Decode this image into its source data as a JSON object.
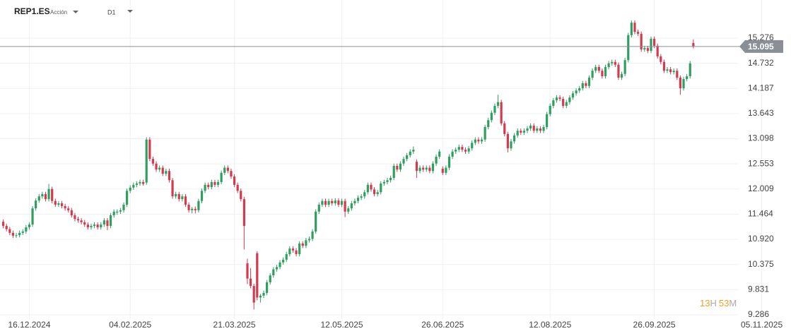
{
  "chart_data": {
    "type": "candlestick",
    "symbol": "REP1.ES",
    "instrument": "Acción",
    "timeframe": "D1",
    "up_color": "#2f9e5e",
    "down_color": "#d23a4e",
    "ylim": [
      9.194,
      16.101
    ],
    "yticks": [
      9.286,
      9.831,
      10.375,
      {
        "value": 10.92,
        "label": "10.920"
      },
      11.464,
      12.009,
      12.553,
      13.098,
      13.643,
      14.187,
      14.732,
      15.276
    ],
    "xlim": [
      -1,
      242
    ],
    "xticks": [
      {
        "value": 8,
        "label": "16.12.2024"
      },
      {
        "value": 39,
        "label": "04.02.2025"
      },
      {
        "value": 71,
        "label": "21.03.2025"
      },
      {
        "value": 104,
        "label": "12.05.2025"
      },
      {
        "value": 135,
        "label": "26.06.2025"
      },
      {
        "value": 168,
        "label": "12.08.2025"
      },
      {
        "value": 200,
        "label": "26.09.2025"
      },
      {
        "value": 233,
        "label": "05.11.2025"
      }
    ],
    "grid": true,
    "current_price": 15.095,
    "timer": {
      "hours": "13",
      "h": "H",
      "minutes": "53",
      "m": "M"
    },
    "candles": [
      [
        11.3,
        11.35,
        11.16,
        11.21
      ],
      [
        11.21,
        11.26,
        11.09,
        11.14
      ],
      [
        11.14,
        11.19,
        11.01,
        11.06
      ],
      [
        11.06,
        11.11,
        10.95,
        11.0
      ],
      [
        11.0,
        11.06,
        10.95,
        11.01
      ],
      [
        11.01,
        11.11,
        10.96,
        11.06
      ],
      [
        11.06,
        11.14,
        11.01,
        11.09
      ],
      [
        11.09,
        11.23,
        11.04,
        11.18
      ],
      [
        11.18,
        11.29,
        11.13,
        11.24
      ],
      [
        11.24,
        11.64,
        11.19,
        11.59
      ],
      [
        11.59,
        11.81,
        11.54,
        11.76
      ],
      [
        11.76,
        11.9,
        11.71,
        11.85
      ],
      [
        11.85,
        11.95,
        11.8,
        11.9
      ],
      [
        11.9,
        11.95,
        11.74,
        11.79
      ],
      [
        11.79,
        12.12,
        11.74,
        12.01
      ],
      [
        12.01,
        12.06,
        11.7,
        11.75
      ],
      [
        11.75,
        11.8,
        11.62,
        11.67
      ],
      [
        11.67,
        11.75,
        11.62,
        11.7
      ],
      [
        11.7,
        11.75,
        11.59,
        11.64
      ],
      [
        11.64,
        11.69,
        11.54,
        11.59
      ],
      [
        11.59,
        11.64,
        11.5,
        11.55
      ],
      [
        11.55,
        11.6,
        11.39,
        11.44
      ],
      [
        11.44,
        11.49,
        11.31,
        11.36
      ],
      [
        11.36,
        11.41,
        11.28,
        11.33
      ],
      [
        11.33,
        11.38,
        11.24,
        11.29
      ],
      [
        11.29,
        11.34,
        11.19,
        11.24
      ],
      [
        11.24,
        11.29,
        11.13,
        11.18
      ],
      [
        11.18,
        11.26,
        11.13,
        11.21
      ],
      [
        11.21,
        11.29,
        11.16,
        11.24
      ],
      [
        11.24,
        11.29,
        11.13,
        11.18
      ],
      [
        11.18,
        11.29,
        11.13,
        11.24
      ],
      [
        11.24,
        11.38,
        11.19,
        11.33
      ],
      [
        11.33,
        11.38,
        11.12,
        11.21
      ],
      [
        11.21,
        11.49,
        11.16,
        11.44
      ],
      [
        11.44,
        11.57,
        11.39,
        11.52
      ],
      [
        11.5,
        11.57,
        11.45,
        11.52
      ],
      [
        11.52,
        11.6,
        11.47,
        11.55
      ],
      [
        11.55,
        11.72,
        11.5,
        11.67
      ],
      [
        11.67,
        12.02,
        11.62,
        11.97
      ],
      [
        11.97,
        12.09,
        11.92,
        12.04
      ],
      [
        12.04,
        12.15,
        11.99,
        12.1
      ],
      [
        12.1,
        12.18,
        12.05,
        12.13
      ],
      [
        12.13,
        12.21,
        12.08,
        12.16
      ],
      [
        12.16,
        12.21,
        12.08,
        12.12
      ],
      [
        12.15,
        13.13,
        12.1,
        13.08
      ],
      [
        13.08,
        13.13,
        12.61,
        12.66
      ],
      [
        12.66,
        12.71,
        12.51,
        12.56
      ],
      [
        12.56,
        12.61,
        12.38,
        12.43
      ],
      [
        12.43,
        12.52,
        12.38,
        12.47
      ],
      [
        12.47,
        12.52,
        12.29,
        12.34
      ],
      [
        12.34,
        12.45,
        12.29,
        12.4
      ],
      [
        12.4,
        12.45,
        12.15,
        12.2
      ],
      [
        12.2,
        12.25,
        11.8,
        11.85
      ],
      [
        11.85,
        11.95,
        11.8,
        11.9
      ],
      [
        11.9,
        11.95,
        11.74,
        11.79
      ],
      [
        11.79,
        11.9,
        11.74,
        11.85
      ],
      [
        11.85,
        11.9,
        11.62,
        11.67
      ],
      [
        11.67,
        11.72,
        11.5,
        11.55
      ],
      [
        11.55,
        11.62,
        11.48,
        11.58
      ],
      [
        11.58,
        11.63,
        11.48,
        11.55
      ],
      [
        11.55,
        11.8,
        11.5,
        11.75
      ],
      [
        11.75,
        12.02,
        11.7,
        11.97
      ],
      [
        11.97,
        12.15,
        11.92,
        12.1
      ],
      [
        12.1,
        12.15,
        12.0,
        12.05
      ],
      [
        12.05,
        12.21,
        12.0,
        12.16
      ],
      [
        12.16,
        12.21,
        12.05,
        12.1
      ],
      [
        12.1,
        12.21,
        12.05,
        12.16
      ],
      [
        12.16,
        12.41,
        12.11,
        12.36
      ],
      [
        12.36,
        12.52,
        12.31,
        12.47
      ],
      [
        12.47,
        12.52,
        12.35,
        12.4
      ],
      [
        12.4,
        12.45,
        12.23,
        12.28
      ],
      [
        12.28,
        12.33,
        12.05,
        12.1
      ],
      [
        12.1,
        12.15,
        11.92,
        11.97
      ],
      [
        11.97,
        12.02,
        11.74,
        11.79
      ],
      [
        11.79,
        11.84,
        10.7,
        11.21
      ],
      [
        10.4,
        10.5,
        9.95,
        10.07
      ],
      [
        10.07,
        10.3,
        9.86,
        9.91
      ],
      [
        9.91,
        9.96,
        9.4,
        9.55
      ],
      [
        10.62,
        10.66,
        9.6,
        9.66
      ],
      [
        9.66,
        9.74,
        9.55,
        9.7
      ],
      [
        9.7,
        9.81,
        9.65,
        9.76
      ],
      [
        9.76,
        10.04,
        9.71,
        9.99
      ],
      [
        9.99,
        10.19,
        9.94,
        10.14
      ],
      [
        10.14,
        10.32,
        10.09,
        10.27
      ],
      [
        10.27,
        10.37,
        10.22,
        10.32
      ],
      [
        10.32,
        10.47,
        10.27,
        10.42
      ],
      [
        10.42,
        10.53,
        10.37,
        10.48
      ],
      [
        10.48,
        10.65,
        10.43,
        10.6
      ],
      [
        10.6,
        10.77,
        10.55,
        10.72
      ],
      [
        10.72,
        10.77,
        10.63,
        10.68
      ],
      [
        10.68,
        10.73,
        10.55,
        10.6
      ],
      [
        10.6,
        10.88,
        10.55,
        10.83
      ],
      [
        10.83,
        10.88,
        10.73,
        10.78
      ],
      [
        10.78,
        10.95,
        10.73,
        10.9
      ],
      [
        10.9,
        10.98,
        10.85,
        10.93
      ],
      [
        10.93,
        11.14,
        10.88,
        11.09
      ],
      [
        11.09,
        11.57,
        11.04,
        11.52
      ],
      [
        11.52,
        11.72,
        11.47,
        11.67
      ],
      [
        11.67,
        11.8,
        11.62,
        11.75
      ],
      [
        11.75,
        11.8,
        11.62,
        11.67
      ],
      [
        11.67,
        11.8,
        11.62,
        11.75
      ],
      [
        11.75,
        11.8,
        11.65,
        11.7
      ],
      [
        11.7,
        11.81,
        11.65,
        11.76
      ],
      [
        11.76,
        11.81,
        11.62,
        11.67
      ],
      [
        11.67,
        11.8,
        11.62,
        11.75
      ],
      [
        11.75,
        11.8,
        11.4,
        11.52
      ],
      [
        11.52,
        11.64,
        11.47,
        11.59
      ],
      [
        11.59,
        11.75,
        11.54,
        11.7
      ],
      [
        11.7,
        11.8,
        11.65,
        11.75
      ],
      [
        11.75,
        11.87,
        11.7,
        11.82
      ],
      [
        11.82,
        11.9,
        11.77,
        11.85
      ],
      [
        11.85,
        11.99,
        11.8,
        11.94
      ],
      [
        11.94,
        12.15,
        11.89,
        12.1
      ],
      [
        12.1,
        12.15,
        11.95,
        12.0
      ],
      [
        12.0,
        12.05,
        11.85,
        11.9
      ],
      [
        11.9,
        11.99,
        11.85,
        11.94
      ],
      [
        11.94,
        12.18,
        11.89,
        12.13
      ],
      [
        12.13,
        12.21,
        12.08,
        12.16
      ],
      [
        12.16,
        12.25,
        12.11,
        12.2
      ],
      [
        12.2,
        12.3,
        12.15,
        12.25
      ],
      [
        12.25,
        12.56,
        12.2,
        12.51
      ],
      [
        12.51,
        12.56,
        12.38,
        12.43
      ],
      [
        12.43,
        12.61,
        12.38,
        12.56
      ],
      [
        12.56,
        12.71,
        12.51,
        12.66
      ],
      [
        12.66,
        12.79,
        12.61,
        12.74
      ],
      [
        12.74,
        12.87,
        12.69,
        12.82
      ],
      [
        12.82,
        12.93,
        12.77,
        12.86
      ],
      [
        12.6,
        12.65,
        12.25,
        12.4
      ],
      [
        12.4,
        12.52,
        12.35,
        12.47
      ],
      [
        12.47,
        12.52,
        12.38,
        12.43
      ],
      [
        12.43,
        12.52,
        12.38,
        12.47
      ],
      [
        12.47,
        12.52,
        12.35,
        12.4
      ],
      [
        12.4,
        12.61,
        12.35,
        12.56
      ],
      [
        12.56,
        12.76,
        12.51,
        12.71
      ],
      [
        12.71,
        12.87,
        12.66,
        12.82
      ],
      [
        12.45,
        12.5,
        12.31,
        12.36
      ],
      [
        12.36,
        12.52,
        12.31,
        12.47
      ],
      [
        12.47,
        12.76,
        12.42,
        12.71
      ],
      [
        12.71,
        12.87,
        12.66,
        12.82
      ],
      [
        12.82,
        12.91,
        12.77,
        12.86
      ],
      [
        12.86,
        12.97,
        12.81,
        12.92
      ],
      [
        12.92,
        12.97,
        12.81,
        12.86
      ],
      [
        12.86,
        12.91,
        12.77,
        12.82
      ],
      [
        12.82,
        12.94,
        12.77,
        12.89
      ],
      [
        12.89,
        13.06,
        12.84,
        13.01
      ],
      [
        13.01,
        13.13,
        12.96,
        13.08
      ],
      [
        13.08,
        13.13,
        12.99,
        13.04
      ],
      [
        13.04,
        13.13,
        12.99,
        13.08
      ],
      [
        13.08,
        13.4,
        13.03,
        13.35
      ],
      [
        13.35,
        13.55,
        13.3,
        13.5
      ],
      [
        13.5,
        13.71,
        13.45,
        13.66
      ],
      [
        13.66,
        13.86,
        13.61,
        13.81
      ],
      [
        13.81,
        14.05,
        13.76,
        13.89
      ],
      [
        13.89,
        13.94,
        13.38,
        13.43
      ],
      [
        13.43,
        13.48,
        13.15,
        13.2
      ],
      [
        13.2,
        13.25,
        12.8,
        12.89
      ],
      [
        12.89,
        13.09,
        12.84,
        13.04
      ],
      [
        13.04,
        13.22,
        12.99,
        13.17
      ],
      [
        13.17,
        13.32,
        13.12,
        13.27
      ],
      [
        13.27,
        13.32,
        13.18,
        13.23
      ],
      [
        13.23,
        13.32,
        13.18,
        13.27
      ],
      [
        13.27,
        13.37,
        13.22,
        13.32
      ],
      [
        13.32,
        13.43,
        13.27,
        13.38
      ],
      [
        13.38,
        13.43,
        13.22,
        13.27
      ],
      [
        13.27,
        13.37,
        13.22,
        13.32
      ],
      [
        13.32,
        13.37,
        13.22,
        13.27
      ],
      [
        13.27,
        13.4,
        13.22,
        13.35
      ],
      [
        13.35,
        13.68,
        13.3,
        13.63
      ],
      [
        13.63,
        13.86,
        13.58,
        13.81
      ],
      [
        13.81,
        13.98,
        13.76,
        13.93
      ],
      [
        13.93,
        14.04,
        13.88,
        13.99
      ],
      [
        13.99,
        14.04,
        13.91,
        13.96
      ],
      [
        13.96,
        14.01,
        13.76,
        13.81
      ],
      [
        13.81,
        13.94,
        13.76,
        13.89
      ],
      [
        13.89,
        14.04,
        13.84,
        13.99
      ],
      [
        13.99,
        14.13,
        13.94,
        14.08
      ],
      [
        14.08,
        14.19,
        14.03,
        14.14
      ],
      [
        14.14,
        14.24,
        14.09,
        14.19
      ],
      [
        14.19,
        14.35,
        14.14,
        14.3
      ],
      [
        14.3,
        14.35,
        14.19,
        14.24
      ],
      [
        14.24,
        14.47,
        14.19,
        14.42
      ],
      [
        14.42,
        14.62,
        14.37,
        14.57
      ],
      [
        14.57,
        14.7,
        14.52,
        14.65
      ],
      [
        14.65,
        14.7,
        14.52,
        14.57
      ],
      [
        14.57,
        14.62,
        14.4,
        14.45
      ],
      [
        14.45,
        14.7,
        14.4,
        14.65
      ],
      [
        14.65,
        14.78,
        14.6,
        14.73
      ],
      [
        14.73,
        14.81,
        14.68,
        14.76
      ],
      [
        14.76,
        14.81,
        14.65,
        14.7
      ],
      [
        14.7,
        14.75,
        14.37,
        14.42
      ],
      [
        14.42,
        14.55,
        14.37,
        14.5
      ],
      [
        14.5,
        14.85,
        14.45,
        14.8
      ],
      [
        14.8,
        15.39,
        14.75,
        15.34
      ],
      [
        15.34,
        15.66,
        15.29,
        15.61
      ],
      [
        15.61,
        15.66,
        15.36,
        15.41
      ],
      [
        15.41,
        15.46,
        15.32,
        15.37
      ],
      [
        15.37,
        15.42,
        14.98,
        15.03
      ],
      [
        15.03,
        15.11,
        14.98,
        15.06
      ],
      [
        15.06,
        15.11,
        14.95,
        15.0
      ],
      [
        15.0,
        15.31,
        14.95,
        15.26
      ],
      [
        15.26,
        15.31,
        15.06,
        15.11
      ],
      [
        15.11,
        15.16,
        14.83,
        14.88
      ],
      [
        14.88,
        14.93,
        14.71,
        14.76
      ],
      [
        14.76,
        14.81,
        14.52,
        14.57
      ],
      [
        14.57,
        14.65,
        14.52,
        14.6
      ],
      [
        14.6,
        14.65,
        14.49,
        14.54
      ],
      [
        14.54,
        14.62,
        14.49,
        14.57
      ],
      [
        14.57,
        14.62,
        14.37,
        14.42
      ],
      [
        14.42,
        14.47,
        14.05,
        14.19
      ],
      [
        14.19,
        14.44,
        14.14,
        14.39
      ],
      [
        14.39,
        14.5,
        14.34,
        14.45
      ],
      [
        14.45,
        14.78,
        14.4,
        14.73
      ],
      [
        15.17,
        15.25,
        15.05,
        15.095
      ]
    ]
  }
}
